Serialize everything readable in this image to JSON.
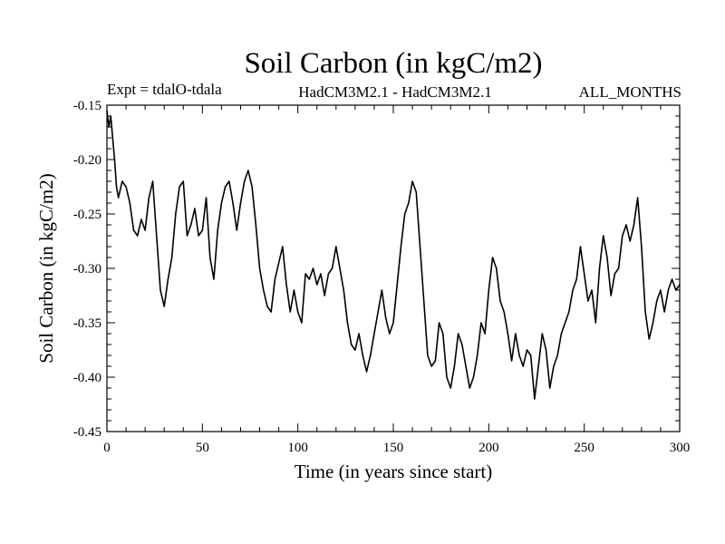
{
  "chart_data": {
    "type": "line",
    "title": "Soil Carbon (in kgC/m2)",
    "subtitle_left": "Expt = tdalO-tdala",
    "subtitle_center": "HadCM3M2.1 - HadCM3M2.1",
    "subtitle_right": "ALL_MONTHS",
    "xlabel": "Time (in years since start)",
    "ylabel": "Soil Carbon (in kgC/m2)",
    "xlim": [
      0,
      300
    ],
    "ylim": [
      -0.45,
      -0.15
    ],
    "xticks": [
      0,
      50,
      100,
      150,
      200,
      250,
      300
    ],
    "xtick_labels": [
      "0",
      "50",
      "100",
      "150",
      "200",
      "250",
      "300"
    ],
    "yticks": [
      -0.45,
      -0.4,
      -0.35,
      -0.3,
      -0.25,
      -0.2,
      -0.15
    ],
    "ytick_labels": [
      "-0.45",
      "-0.40",
      "-0.35",
      "-0.30",
      "-0.25",
      "-0.20",
      "-0.15"
    ],
    "grid": false,
    "series": [
      {
        "name": "Soil Carbon",
        "color": "#000000",
        "x": [
          0,
          1,
          2,
          3,
          4,
          5,
          6,
          8,
          10,
          12,
          14,
          16,
          18,
          20,
          22,
          24,
          26,
          28,
          30,
          32,
          34,
          36,
          38,
          40,
          42,
          44,
          46,
          48,
          50,
          52,
          54,
          56,
          58,
          60,
          62,
          64,
          66,
          68,
          70,
          72,
          74,
          76,
          78,
          80,
          82,
          84,
          86,
          88,
          90,
          92,
          94,
          96,
          98,
          100,
          102,
          104,
          106,
          108,
          110,
          112,
          114,
          116,
          118,
          120,
          122,
          124,
          126,
          128,
          130,
          132,
          134,
          136,
          138,
          140,
          142,
          144,
          146,
          148,
          150,
          152,
          154,
          156,
          158,
          160,
          162,
          164,
          166,
          168,
          170,
          172,
          174,
          176,
          178,
          180,
          182,
          184,
          186,
          188,
          190,
          192,
          194,
          196,
          198,
          200,
          202,
          204,
          206,
          208,
          210,
          212,
          214,
          216,
          218,
          220,
          222,
          224,
          226,
          228,
          230,
          232,
          234,
          236,
          238,
          240,
          242,
          244,
          246,
          248,
          250,
          252,
          254,
          256,
          258,
          260,
          262,
          264,
          266,
          268,
          270,
          272,
          274,
          276,
          278,
          280,
          282,
          284,
          286,
          288,
          290,
          292,
          294,
          296,
          298,
          300
        ],
        "y": [
          -0.155,
          -0.17,
          -0.16,
          -0.18,
          -0.2,
          -0.225,
          -0.235,
          -0.22,
          -0.225,
          -0.24,
          -0.265,
          -0.27,
          -0.255,
          -0.265,
          -0.235,
          -0.22,
          -0.27,
          -0.32,
          -0.335,
          -0.31,
          -0.29,
          -0.25,
          -0.225,
          -0.22,
          -0.27,
          -0.26,
          -0.245,
          -0.27,
          -0.265,
          -0.235,
          -0.29,
          -0.31,
          -0.265,
          -0.24,
          -0.225,
          -0.22,
          -0.24,
          -0.265,
          -0.24,
          -0.22,
          -0.21,
          -0.225,
          -0.26,
          -0.3,
          -0.32,
          -0.335,
          -0.34,
          -0.31,
          -0.295,
          -0.28,
          -0.315,
          -0.34,
          -0.32,
          -0.34,
          -0.35,
          -0.305,
          -0.31,
          -0.3,
          -0.315,
          -0.305,
          -0.325,
          -0.305,
          -0.3,
          -0.28,
          -0.3,
          -0.32,
          -0.35,
          -0.37,
          -0.375,
          -0.36,
          -0.38,
          -0.395,
          -0.38,
          -0.36,
          -0.34,
          -0.32,
          -0.345,
          -0.36,
          -0.35,
          -0.315,
          -0.28,
          -0.25,
          -0.24,
          -0.22,
          -0.23,
          -0.28,
          -0.33,
          -0.38,
          -0.39,
          -0.385,
          -0.35,
          -0.36,
          -0.4,
          -0.41,
          -0.39,
          -0.36,
          -0.37,
          -0.39,
          -0.41,
          -0.4,
          -0.38,
          -0.35,
          -0.36,
          -0.32,
          -0.29,
          -0.3,
          -0.33,
          -0.34,
          -0.36,
          -0.385,
          -0.36,
          -0.38,
          -0.39,
          -0.375,
          -0.38,
          -0.42,
          -0.39,
          -0.36,
          -0.375,
          -0.41,
          -0.39,
          -0.38,
          -0.36,
          -0.35,
          -0.34,
          -0.32,
          -0.31,
          -0.28,
          -0.305,
          -0.33,
          -0.32,
          -0.35,
          -0.3,
          -0.27,
          -0.29,
          -0.325,
          -0.305,
          -0.3,
          -0.27,
          -0.26,
          -0.275,
          -0.26,
          -0.235,
          -0.28,
          -0.34,
          -0.365,
          -0.35,
          -0.33,
          -0.32,
          -0.34,
          -0.32,
          -0.31,
          -0.32,
          -0.315
        ]
      }
    ]
  }
}
